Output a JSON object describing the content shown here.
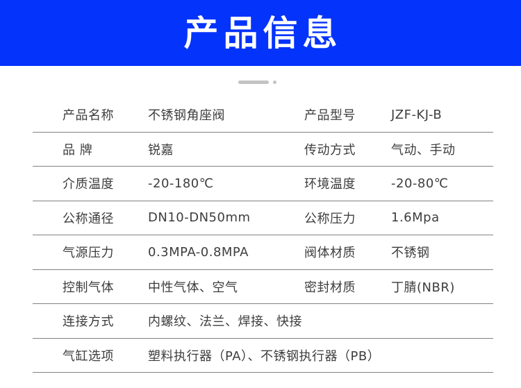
{
  "header": {
    "title": "产品信息",
    "background_color": "#0433fb",
    "title_color": "#ffffff"
  },
  "ornament": {
    "icons": [
      "dash-divider-icon",
      "dot-divider-icon"
    ],
    "color": "#c3c3c3"
  },
  "table": {
    "text_color": "#3d3d3d",
    "divider_color": "#818181",
    "rows": [
      {
        "label1": "产品名称",
        "value1": "不锈钢角座阀",
        "label2": "产品型号",
        "value2": "JZF-KJ-B"
      },
      {
        "label1": "品 牌",
        "value1": "锐嘉",
        "label2": "传动方式",
        "value2": "气动、手动"
      },
      {
        "label1": "介质温度",
        "value1": "-20-180℃",
        "label2": "环境温度",
        "value2": "-20-80℃"
      },
      {
        "label1": "公称通径",
        "value1": "DN10-DN50mm",
        "label2": "公称压力",
        "value2": "1.6Mpa"
      },
      {
        "label1": "气源压力",
        "value1": "0.3MPA-0.8MPA",
        "label2": "阀体材质",
        "value2": "不锈钢"
      },
      {
        "label1": "控制气体",
        "value1": "中性气体、空气",
        "label2": "密封材质",
        "value2": "丁腈(NBR)"
      },
      {
        "label1": "连接方式",
        "value1": "内螺纹、法兰、焊接、快接"
      },
      {
        "label1": "气缸选项",
        "value1": "塑料执行器（PA）、不锈钢执行器（PB）"
      }
    ]
  }
}
